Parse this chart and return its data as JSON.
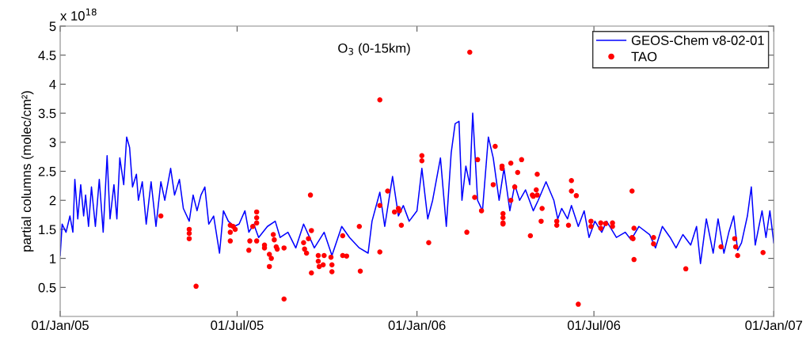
{
  "chart_data": {
    "type": "line",
    "title": "O$_{3}$ (0-15km)",
    "ylabel": "partial columns (molec/cm²)",
    "annotations": [
      "x 10$^{18}$"
    ],
    "xlim": [
      "2005-01-01",
      "2007-01-01"
    ],
    "xticks": [
      {
        "value": "2005-01-01",
        "label": "01/Jan/05"
      },
      {
        "value": "2005-07-01",
        "label": "01/Jul/05"
      },
      {
        "value": "2006-01-01",
        "label": "01/Jan/06"
      },
      {
        "value": "2006-07-01",
        "label": "01/Jul/06"
      },
      {
        "value": "2007-01-01",
        "label": "01/Jan/07"
      }
    ],
    "ylim": [
      0,
      5
    ],
    "yticks": [
      0.5,
      1,
      1.5,
      2,
      2.5,
      3,
      3.5,
      4,
      4.5,
      5
    ],
    "legend": "top right",
    "series": [
      {
        "name": "GEOS-Chem v8-02-01",
        "color": "#0000ff",
        "marker": "none",
        "line_style": "solid",
        "x": [
          "2005-01-01",
          "2005-01-03",
          "2005-01-07",
          "2005-01-11",
          "2005-01-14",
          "2005-01-16",
          "2005-01-19",
          "2005-01-22",
          "2005-01-25",
          "2005-01-27",
          "2005-01-30",
          "2005-02-02",
          "2005-02-06",
          "2005-02-10",
          "2005-02-14",
          "2005-02-18",
          "2005-02-21",
          "2005-02-25",
          "2005-02-28",
          "2005-03-03",
          "2005-03-07",
          "2005-03-10",
          "2005-03-13",
          "2005-03-16",
          "2005-03-20",
          "2005-03-22",
          "2005-03-26",
          "2005-03-30",
          "2005-04-04",
          "2005-04-09",
          "2005-04-14",
          "2005-04-18",
          "2005-04-24",
          "2005-04-28",
          "2005-05-03",
          "2005-05-07",
          "2005-05-13",
          "2005-05-17",
          "2005-05-21",
          "2005-05-25",
          "2005-05-29",
          "2005-06-02",
          "2005-06-07",
          "2005-06-13",
          "2005-06-17",
          "2005-06-22",
          "2005-06-28",
          "2005-07-03",
          "2005-07-09",
          "2005-07-13",
          "2005-07-18",
          "2005-07-23",
          "2005-08-01",
          "2005-08-09",
          "2005-08-14",
          "2005-08-22",
          "2005-08-30",
          "2005-09-07",
          "2005-09-18",
          "2005-09-28",
          "2005-10-06",
          "2005-10-16",
          "2005-10-24",
          "2005-11-03",
          "2005-11-12",
          "2005-11-16",
          "2005-11-24",
          "2005-11-29",
          "2005-12-07",
          "2005-12-13",
          "2005-12-18",
          "2005-12-24",
          "2006-01-01",
          "2006-01-06",
          "2006-01-12",
          "2006-01-17",
          "2006-01-25",
          "2006-01-31",
          "2006-02-05",
          "2006-02-09",
          "2006-02-13",
          "2006-02-16",
          "2006-02-20",
          "2006-02-24",
          "2006-02-27",
          "2006-03-04",
          "2006-03-09",
          "2006-03-15",
          "2006-03-20",
          "2006-03-26",
          "2006-03-31",
          "2006-04-06",
          "2006-04-11",
          "2006-04-16",
          "2006-04-22",
          "2006-04-30",
          "2006-05-05",
          "2006-05-13",
          "2006-05-21",
          "2006-05-25",
          "2006-05-29",
          "2006-06-04",
          "2006-06-08",
          "2006-06-15",
          "2006-06-21",
          "2006-06-26",
          "2006-07-02",
          "2006-07-09",
          "2006-07-14",
          "2006-07-24",
          "2006-08-02",
          "2006-08-08",
          "2006-08-16",
          "2006-08-27",
          "2006-09-02",
          "2006-09-09",
          "2006-09-17",
          "2006-09-23",
          "2006-09-30",
          "2006-10-08",
          "2006-10-14",
          "2006-10-18",
          "2006-10-24",
          "2006-10-31",
          "2006-11-05",
          "2006-11-11",
          "2006-11-16",
          "2006-11-21",
          "2006-11-25",
          "2006-11-29",
          "2006-12-05",
          "2006-12-09",
          "2006-12-13",
          "2006-12-20",
          "2006-12-24",
          "2006-12-28",
          "2007-01-01"
        ],
        "values": [
          1.05,
          1.59,
          1.45,
          1.73,
          1.45,
          2.36,
          1.68,
          2.27,
          1.73,
          2.09,
          1.55,
          2.23,
          1.55,
          2.36,
          1.45,
          2.77,
          1.68,
          2.27,
          1.68,
          2.73,
          2.27,
          3.09,
          2.91,
          2.23,
          2.45,
          2.0,
          2.32,
          1.59,
          2.32,
          1.55,
          2.32,
          2.0,
          2.55,
          2.09,
          2.36,
          1.86,
          1.64,
          2.09,
          1.82,
          2.09,
          2.23,
          1.59,
          1.73,
          1.09,
          1.82,
          1.64,
          1.55,
          1.59,
          1.82,
          1.45,
          1.59,
          1.36,
          1.55,
          1.64,
          1.36,
          1.45,
          1.18,
          1.59,
          1.18,
          1.45,
          1.05,
          1.55,
          1.36,
          1.18,
          1.09,
          1.64,
          2.14,
          1.55,
          2.41,
          1.73,
          1.91,
          1.64,
          1.82,
          2.55,
          1.68,
          2.0,
          2.73,
          1.55,
          2.82,
          3.32,
          3.36,
          2.0,
          2.59,
          2.27,
          3.5,
          2.0,
          1.82,
          3.09,
          2.73,
          2.0,
          2.55,
          1.82,
          2.27,
          2.0,
          2.18,
          1.82,
          2.0,
          2.32,
          2.0,
          1.68,
          1.86,
          1.68,
          1.91,
          1.55,
          1.82,
          1.36,
          1.64,
          1.45,
          1.64,
          1.36,
          1.45,
          1.32,
          1.55,
          1.41,
          1.18,
          1.55,
          1.36,
          1.18,
          1.41,
          1.23,
          1.55,
          0.91,
          1.68,
          1.09,
          1.68,
          1.09,
          1.45,
          1.73,
          1.14,
          1.27,
          1.73,
          2.23,
          1.23,
          1.82,
          1.36,
          1.82,
          1.27
        ]
      },
      {
        "name": "TAO",
        "type": "scatter",
        "color": "#ff0000",
        "marker": "circle",
        "x": [
          "2005-04-14",
          "2005-05-13",
          "2005-05-13",
          "2005-05-13",
          "2005-05-20",
          "2005-06-24",
          "2005-06-24",
          "2005-06-24",
          "2005-06-27",
          "2005-06-29",
          "2005-07-13",
          "2005-07-14",
          "2005-07-17",
          "2005-07-21",
          "2005-07-21",
          "2005-07-21",
          "2005-07-21",
          "2005-07-29",
          "2005-07-29",
          "2005-08-03",
          "2005-08-03",
          "2005-08-05",
          "2005-08-07",
          "2005-08-08",
          "2005-08-10",
          "2005-08-11",
          "2005-08-18",
          "2005-08-18",
          "2005-09-07",
          "2005-09-08",
          "2005-09-10",
          "2005-09-12",
          "2005-09-14",
          "2005-09-15",
          "2005-09-15",
          "2005-09-22",
          "2005-09-22",
          "2005-09-23",
          "2005-09-28",
          "2005-09-27",
          "2005-10-05",
          "2005-10-06",
          "2005-10-06",
          "2005-10-17",
          "2005-10-17",
          "2005-10-21",
          "2005-11-03",
          "2005-11-04",
          "2005-11-24",
          "2005-11-24",
          "2005-11-24",
          "2005-12-02",
          "2005-12-09",
          "2005-12-13",
          "2005-12-14",
          "2005-12-16",
          "2006-01-06",
          "2006-01-06",
          "2006-01-13",
          "2006-02-21",
          "2006-02-24",
          "2006-03-01",
          "2006-03-04",
          "2006-03-08",
          "2006-03-20",
          "2006-03-22",
          "2006-03-29",
          "2006-03-29",
          "2006-03-30",
          "2006-03-30",
          "2006-03-30",
          "2006-03-30",
          "2006-04-07",
          "2006-04-07",
          "2006-04-11",
          "2006-04-14",
          "2006-04-18",
          "2006-04-27",
          "2006-04-29",
          "2006-04-30",
          "2006-05-03",
          "2006-05-04",
          "2006-05-04",
          "2006-05-09",
          "2006-05-08",
          "2006-05-24",
          "2006-05-24",
          "2006-06-05",
          "2006-06-08",
          "2006-06-08",
          "2006-06-13",
          "2006-06-15",
          "2006-06-28",
          "2006-06-28",
          "2006-07-08",
          "2006-07-08",
          "2006-07-13",
          "2006-07-20",
          "2006-07-20",
          "2006-08-09",
          "2006-08-09",
          "2006-08-10",
          "2006-08-11",
          "2006-08-11",
          "2006-08-31",
          "2006-08-31",
          "2006-10-03",
          "2006-11-08",
          "2006-11-22",
          "2006-11-23",
          "2006-11-25",
          "2006-12-21"
        ],
        "values": [
          1.73,
          1.5,
          1.43,
          1.34,
          0.52,
          1.57,
          1.45,
          1.3,
          1.55,
          1.5,
          1.14,
          1.3,
          1.55,
          1.8,
          1.7,
          1.61,
          1.3,
          1.23,
          1.18,
          1.07,
          0.86,
          1.0,
          1.41,
          1.32,
          1.2,
          1.16,
          1.18,
          0.3,
          1.27,
          1.16,
          1.09,
          1.34,
          2.09,
          1.48,
          0.75,
          1.05,
          0.95,
          0.86,
          1.05,
          0.89,
          1.02,
          0.89,
          0.77,
          1.39,
          1.05,
          1.04,
          1.55,
          0.78,
          1.11,
          3.73,
          1.91,
          2.16,
          1.8,
          1.86,
          1.82,
          1.57,
          2.77,
          2.68,
          1.27,
          1.45,
          4.55,
          2.05,
          2.7,
          1.82,
          2.27,
          2.93,
          2.59,
          2.55,
          1.77,
          1.7,
          1.61,
          1.59,
          2.64,
          2.0,
          2.23,
          2.48,
          2.7,
          1.39,
          2.09,
          2.07,
          2.18,
          2.09,
          2.45,
          1.86,
          1.64,
          1.64,
          1.57,
          1.57,
          2.34,
          2.16,
          2.08,
          0.21,
          1.64,
          1.55,
          1.61,
          1.52,
          1.6,
          1.61,
          1.55,
          2.16,
          1.36,
          1.34,
          1.52,
          0.98,
          1.36,
          1.25,
          0.82,
          1.2,
          1.34,
          1.2,
          1.05,
          1.1
        ]
      }
    ]
  }
}
